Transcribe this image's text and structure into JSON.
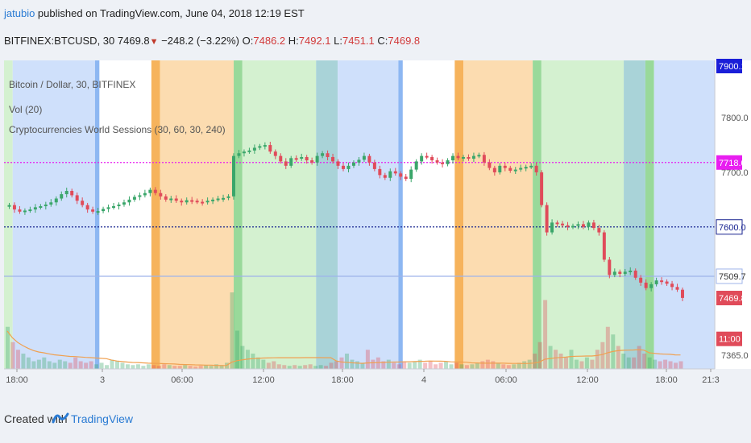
{
  "header": {
    "author": "jatubio",
    "published_text": " published on TradingView.com, June 04, 2018 12:19 EST",
    "symbol": "BITFINEX:BTCUSD, 30",
    "last": "7469.8",
    "change": "−248.2 (−3.22%)",
    "o_label": "O:",
    "o_value": "7486.2",
    "h_label": "H:",
    "h_value": "7492.1",
    "l_label": "L:",
    "l_value": "7451.1",
    "c_label": "C:",
    "c_value": "7469.8"
  },
  "legend": {
    "line1": "Bitcoin / Dollar, 30, BITFINEX",
    "line2": "Vol (20)",
    "line3": "Cryptocurrencies World Sessions (30, 60, 30, 240)"
  },
  "footer": {
    "created_with": "Created with",
    "brand": "TradingView"
  },
  "colors": {
    "up": "#3aa66a",
    "down": "#e04b5a",
    "session_blue": "#cfe0fb",
    "session_orange": "#fcdcb0",
    "session_green": "#d4f1d0",
    "session_teal": "#a9d3d8",
    "bar_blue": "#8db7f2",
    "bar_orange": "#f6b35c",
    "bar_green": "#99d99a",
    "line_magenta": "#e81ef0",
    "line_navy": "#14208f",
    "line_lightblue": "#9fb4ea",
    "vol_ma": "#f0a050"
  },
  "chart_data": {
    "type": "candlestick",
    "ylim": [
      7340,
      7905
    ],
    "y_ticks": [
      7365.0,
      7700.0,
      7800.0
    ],
    "x_tick_labels": [
      "18:00",
      "3",
      "06:00",
      "12:00",
      "18:00",
      "4",
      "06:00",
      "12:00",
      "18:00",
      "21:3"
    ],
    "price_labels": [
      {
        "text": "7900.1",
        "value": 7900.1,
        "style": "blue"
      },
      {
        "text": "7718.0",
        "value": 7718.0,
        "style": "magenta"
      },
      {
        "text": "7600.0",
        "value": 7600.0,
        "style": "navy"
      },
      {
        "text": "7509.7",
        "value": 7509.7,
        "style": "lightblue"
      },
      {
        "text": "7469.8",
        "value": 7469.8,
        "style": "red"
      },
      {
        "text": "11:00",
        "value": 7395,
        "style": "red"
      }
    ],
    "horizontal_lines": [
      {
        "value": 7718.0,
        "style": "magenta-dotted"
      },
      {
        "value": 7600.0,
        "style": "navy-dotted"
      },
      {
        "value": 7509.7,
        "style": "lightblue-solid"
      }
    ],
    "session_bands_x_hours": [
      {
        "from": 0.0,
        "to": 1.0,
        "color": "green"
      },
      {
        "from": 1.0,
        "to": 10.5,
        "color": "blue"
      },
      {
        "from": 10.5,
        "to": 11.0,
        "color": "bar_blue"
      },
      {
        "from": 17.0,
        "to": 18.0,
        "color": "bar_orange"
      },
      {
        "from": 18.0,
        "to": 26.5,
        "color": "orange"
      },
      {
        "from": 26.5,
        "to": 27.5,
        "color": "bar_green"
      },
      {
        "from": 27.5,
        "to": 36.0,
        "color": "green"
      },
      {
        "from": 36.0,
        "to": 38.5,
        "color": "teal"
      },
      {
        "from": 38.5,
        "to": 45.5,
        "color": "blue"
      },
      {
        "from": 45.5,
        "to": 46.0,
        "color": "bar_blue"
      },
      {
        "from": 52.0,
        "to": 53.0,
        "color": "bar_orange"
      },
      {
        "from": 53.0,
        "to": 61.0,
        "color": "orange"
      },
      {
        "from": 61.0,
        "to": 62.0,
        "color": "bar_green"
      },
      {
        "from": 62.0,
        "to": 71.5,
        "color": "green"
      },
      {
        "from": 71.5,
        "to": 74.0,
        "color": "teal"
      },
      {
        "from": 74.0,
        "to": 75.0,
        "color": "bar_green"
      },
      {
        "from": 75.0,
        "to": 82.0,
        "color": "blue"
      }
    ],
    "x_axis_hours": {
      "start": 0,
      "end": 82,
      "tick_hours": [
        1,
        9,
        21,
        33,
        45,
        57,
        69,
        81,
        87,
        93
      ]
    },
    "closes": [
      7640,
      7632,
      7628,
      7630,
      7632,
      7636,
      7638,
      7641,
      7645,
      7652,
      7660,
      7666,
      7658,
      7648,
      7640,
      7632,
      7628,
      7629,
      7633,
      7636,
      7638,
      7641,
      7645,
      7650,
      7655,
      7658,
      7662,
      7668,
      7662,
      7656,
      7650,
      7652,
      7648,
      7645,
      7649,
      7648,
      7646,
      7645,
      7648,
      7650,
      7652,
      7653,
      7656,
      7730,
      7735,
      7738,
      7740,
      7745,
      7748,
      7750,
      7738,
      7730,
      7720,
      7712,
      7726,
      7725,
      7728,
      7722,
      7718,
      7730,
      7735,
      7728,
      7720,
      7712,
      7706,
      7712,
      7718,
      7723,
      7730,
      7718,
      7706,
      7695,
      7690,
      7702,
      7698,
      7692,
      7688,
      7705,
      7720,
      7730,
      7728,
      7722,
      7718,
      7715,
      7722,
      7730,
      7726,
      7728,
      7725,
      7730,
      7732,
      7718,
      7708,
      7700,
      7712,
      7708,
      7703,
      7705,
      7708,
      7710,
      7712,
      7700,
      7640,
      7590,
      7608,
      7606,
      7603,
      7600,
      7602,
      7605,
      7600,
      7608,
      7598,
      7590,
      7540,
      7512,
      7518,
      7514,
      7518,
      7520,
      7507,
      7498,
      7488,
      7495,
      7502,
      7500,
      7496,
      7490,
      7485,
      7470
    ],
    "volumes_rel": [
      0.55,
      0.35,
      0.25,
      0.2,
      0.15,
      0.1,
      0.12,
      0.15,
      0.1,
      0.08,
      0.12,
      0.1,
      0.08,
      0.15,
      0.1,
      0.08,
      0.1,
      0.06,
      0.08,
      0.05,
      0.12,
      0.1,
      0.08,
      0.06,
      0.05,
      0.06,
      0.04,
      0.06,
      0.05,
      0.04,
      0.06,
      0.05,
      0.04,
      0.04,
      0.05,
      0.04,
      0.03,
      0.04,
      0.05,
      0.04,
      0.06,
      0.05,
      0.08,
      1.0,
      0.5,
      0.3,
      0.25,
      0.2,
      0.15,
      0.12,
      0.08,
      0.1,
      0.06,
      0.05,
      0.04,
      0.05,
      0.04,
      0.05,
      0.06,
      0.04,
      0.05,
      0.04,
      0.08,
      0.1,
      0.15,
      0.2,
      0.12,
      0.1,
      0.08,
      0.25,
      0.12,
      0.15,
      0.1,
      0.12,
      0.08,
      0.06,
      0.1,
      0.08,
      0.1,
      0.12,
      0.08,
      0.1,
      0.06,
      0.08,
      0.1,
      0.06,
      0.08,
      0.06,
      0.05,
      0.06,
      0.08,
      0.1,
      0.12,
      0.1,
      0.08,
      0.06,
      0.05,
      0.06,
      0.08,
      0.1,
      0.12,
      0.2,
      0.35,
      0.9,
      0.3,
      0.25,
      0.2,
      0.15,
      0.25,
      0.12,
      0.1,
      0.15,
      0.12,
      0.25,
      0.35,
      0.55,
      0.45,
      0.3,
      0.2,
      0.15,
      0.15,
      0.3,
      0.2,
      0.15,
      0.12,
      0.1,
      0.12,
      0.1,
      0.08,
      0.1
    ]
  }
}
